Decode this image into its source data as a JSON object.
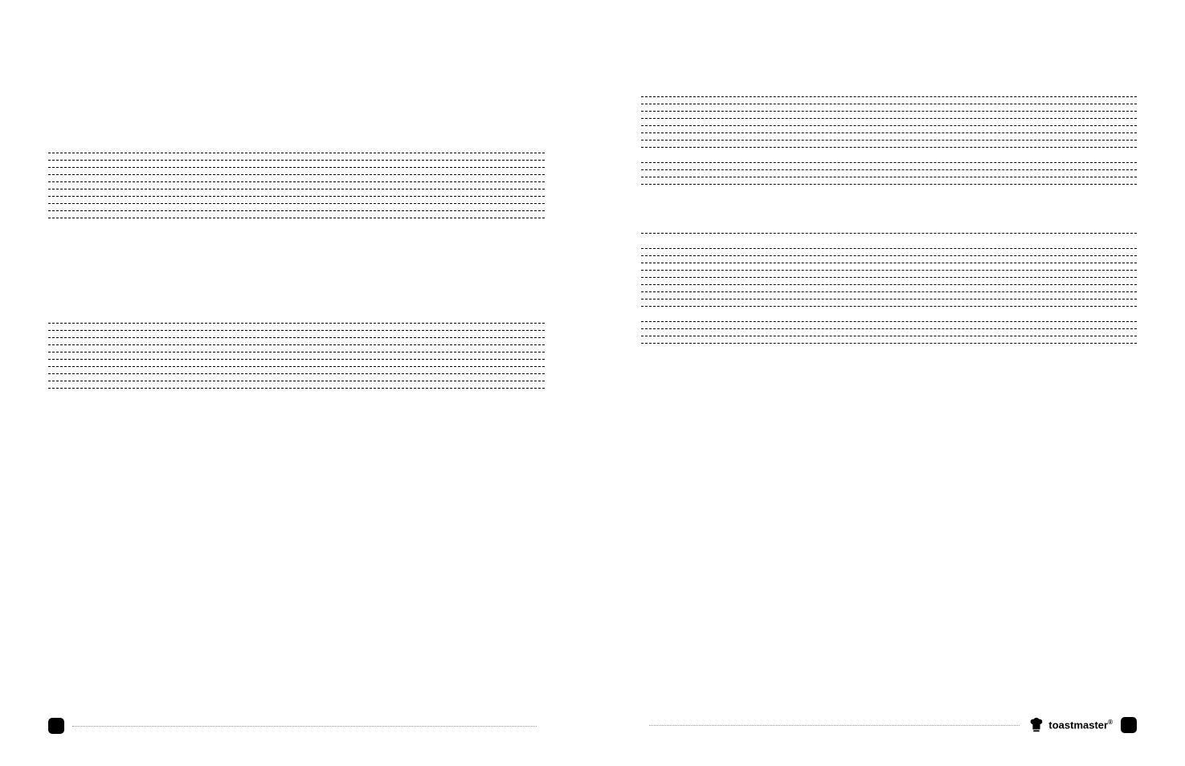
{
  "brand": {
    "name": "toastmaster",
    "registered_mark": "®"
  },
  "layout": {
    "left_page": {
      "groups": [
        {
          "gap_before": "xlarge",
          "line_count": 10,
          "line_spacing": "small"
        },
        {
          "gap_before": "xlarge",
          "line_count": 10,
          "line_spacing": "small"
        }
      ]
    },
    "right_page": {
      "groups": [
        {
          "gap_before": "large",
          "line_count": 8,
          "line_spacing": "small"
        },
        {
          "gap_before": "medium",
          "line_count": 4,
          "line_spacing": "small"
        },
        {
          "gap_before": "large",
          "line_count": 1,
          "line_spacing": "small"
        },
        {
          "gap_before": "medium",
          "line_count": 9,
          "line_spacing": "small"
        },
        {
          "gap_before": "medium",
          "line_count": 4,
          "line_spacing": "small"
        }
      ]
    }
  },
  "colors": {
    "background": "#ffffff",
    "line_color": "#000000",
    "dotted_color": "#999999",
    "marker_color": "#000000"
  }
}
